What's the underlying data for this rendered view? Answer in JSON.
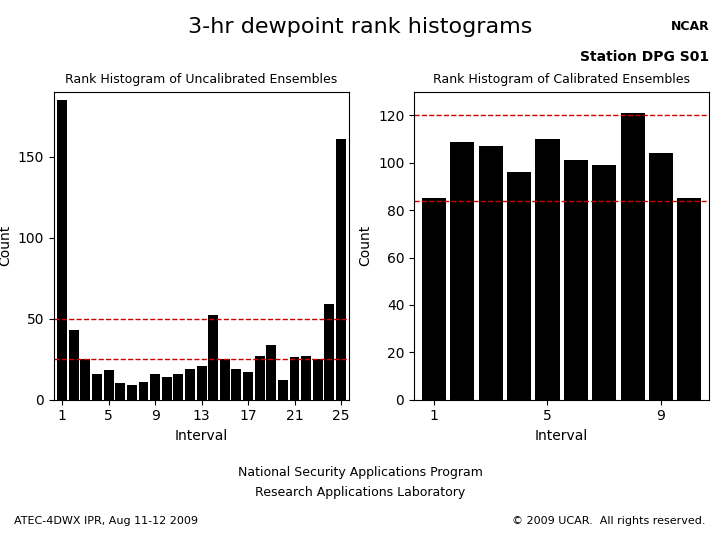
{
  "title": "3-hr dewpoint rank histograms",
  "subtitle": "Station DPG S01",
  "annotations": [
    "NCAR",
    "National Security Applications Program",
    "Research Applications Laboratory",
    "ATEC-4DWX IPR, Aug 11-12 2009",
    "© 2009 UCAR.  All rights reserved."
  ],
  "chart_data": [
    {
      "type": "bar",
      "title": "Rank Histogram of Uncalibrated Ensembles",
      "x_label": "Interval",
      "y_label": "Count",
      "categories": [
        "1",
        null,
        null,
        null,
        "5",
        null,
        null,
        null,
        "9",
        null,
        null,
        null,
        "13",
        null,
        null,
        null,
        "17",
        null,
        null,
        null,
        "21",
        null,
        null,
        null,
        "25"
      ],
      "values": [
        185,
        43,
        25,
        16,
        18,
        10,
        9,
        11,
        16,
        14,
        16,
        19,
        21,
        52,
        25,
        19,
        17,
        27,
        34,
        12,
        26,
        27,
        25,
        59,
        161
      ],
      "color": "#000000",
      "reference_lines": {
        "values": [
          50,
          25
        ],
        "color": "#cc0000",
        "line_style": "dashed"
      },
      "ylim": [
        0,
        190
      ],
      "yticks": [
        0,
        50,
        100,
        150
      ],
      "grid": false
    },
    {
      "type": "bar",
      "title": "Rank Histogram of Calibrated Ensembles",
      "x_label": "Interval",
      "y_label": "Count",
      "categories": [
        "1",
        null,
        null,
        null,
        "5",
        null,
        null,
        null,
        "9",
        null
      ],
      "values": [
        85,
        109,
        107,
        96,
        110,
        101,
        99,
        121,
        104,
        85
      ],
      "color": "#000000",
      "reference_lines": {
        "values": [
          120,
          84
        ],
        "color": "#cc0000",
        "line_style": "dashed"
      },
      "ylim": [
        0,
        130
      ],
      "yticks": [
        0,
        20,
        40,
        60,
        80,
        100,
        120
      ],
      "grid": false
    }
  ]
}
